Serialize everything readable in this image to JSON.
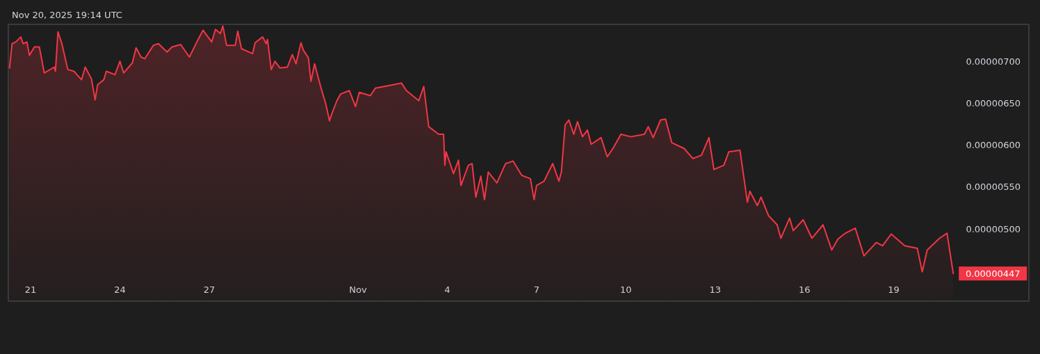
{
  "chart_data": {
    "type": "area",
    "color": "#f23645",
    "annotations": [
      "Nov 20, 2025 19:14 UTC",
      {
        "text": "0.00000447",
        "x": "2025-11-21T00:00",
        "y": 4.47e-06
      }
    ],
    "xlim": [
      "2025-10-20T06:00",
      "2025-11-23T13:00"
    ],
    "xticks": [
      {
        "value": "2025-10-21",
        "label": "21"
      },
      {
        "value": "2025-10-24",
        "label": "24"
      },
      {
        "value": "2025-10-27",
        "label": "27"
      },
      {
        "value": "2025-11-01",
        "label": "Nov"
      },
      {
        "value": "2025-11-04",
        "label": "4"
      },
      {
        "value": "2025-11-07",
        "label": "7"
      },
      {
        "value": "2025-11-10",
        "label": "10"
      },
      {
        "value": "2025-11-13",
        "label": "13"
      },
      {
        "value": "2025-11-16",
        "label": "16"
      },
      {
        "value": "2025-11-19",
        "label": "19"
      }
    ],
    "ylim": [
      4.14e-06,
      7.44e-06
    ],
    "yticks": [
      {
        "value": 5e-06,
        "label": "0.00000500"
      },
      {
        "value": 5.5e-06,
        "label": "0.00000550"
      },
      {
        "value": 6e-06,
        "label": "0.00000600"
      },
      {
        "value": 6.5e-06,
        "label": "0.00000650"
      },
      {
        "value": 7e-06,
        "label": "0.00000700"
      }
    ],
    "grid": false,
    "marker": "none",
    "line_style": "solid",
    "x": [
      "2025-10-20T07:00",
      "2025-10-20T09:00",
      "2025-10-20T12:00",
      "2025-10-20T16:00",
      "2025-10-20T18:00",
      "2025-10-20T21:00",
      "2025-10-20T23:00",
      "2025-10-21T03:00",
      "2025-10-21T07:00",
      "2025-10-21T11:00",
      "2025-10-21T19:00",
      "2025-10-21T20:00",
      "2025-10-21T22:00",
      "2025-10-22T01:00",
      "2025-10-22T06:00",
      "2025-10-22T11:00",
      "2025-10-22T17:00",
      "2025-10-22T20:00",
      "2025-10-23T01:00",
      "2025-10-23T04:00",
      "2025-10-23T06:00",
      "2025-10-23T11:00",
      "2025-10-23T13:00",
      "2025-10-23T20:00",
      "2025-10-24T00:00",
      "2025-10-24T03:00",
      "2025-10-24T10:00",
      "2025-10-24T13:00",
      "2025-10-24T17:00",
      "2025-10-24T20:00",
      "2025-10-25T03:00",
      "2025-10-25T07:00",
      "2025-10-25T14:00",
      "2025-10-25T18:00",
      "2025-10-26T01:00",
      "2025-10-26T08:00",
      "2025-10-26T14:00",
      "2025-10-26T19:00",
      "2025-10-27T02:00",
      "2025-10-27T05:00",
      "2025-10-27T09:00",
      "2025-10-27T11:00",
      "2025-10-27T14:00",
      "2025-10-27T21:00",
      "2025-10-27T23:00",
      "2025-10-28T02:00",
      "2025-10-28T11:00",
      "2025-10-28T13:00",
      "2025-10-28T19:00",
      "2025-10-28T22:00",
      "2025-10-28T23:00",
      "2025-10-29T02:00",
      "2025-10-29T05:00",
      "2025-10-29T09:00",
      "2025-10-29T15:00",
      "2025-10-29T19:00",
      "2025-10-29T22:00",
      "2025-10-30T02:00",
      "2025-10-30T04:00",
      "2025-10-30T08:00",
      "2025-10-30T10:00",
      "2025-10-30T13:00",
      "2025-10-30T18:00",
      "2025-10-30T22:00",
      "2025-10-31T01:00",
      "2025-10-31T03:00",
      "2025-10-31T07:00",
      "2025-10-31T10:00",
      "2025-10-31T17:00",
      "2025-10-31T22:00",
      "2025-11-01T01:00",
      "2025-11-01T10:00",
      "2025-11-01T14:00",
      "2025-11-02T01:00",
      "2025-11-02T11:00",
      "2025-11-02T15:00",
      "2025-11-03T01:00",
      "2025-11-03T05:00",
      "2025-11-03T09:00",
      "2025-11-03T17:00",
      "2025-11-03T21:00",
      "2025-11-03T22:00",
      "2025-11-03T23:00",
      "2025-11-04T05:00",
      "2025-11-04T09:00",
      "2025-11-04T11:00",
      "2025-11-04T17:00",
      "2025-11-04T20:00",
      "2025-11-04T23:00",
      "2025-11-05T03:00",
      "2025-11-05T06:00",
      "2025-11-05T09:00",
      "2025-11-05T16:00",
      "2025-11-05T23:00",
      "2025-11-06T05:00",
      "2025-11-06T12:00",
      "2025-11-06T19:00",
      "2025-11-06T22:00",
      "2025-11-07T00:00",
      "2025-11-07T06:00",
      "2025-11-07T13:00",
      "2025-11-07T18:00",
      "2025-11-07T20:00",
      "2025-11-07T23:00",
      "2025-11-08T02:00",
      "2025-11-08T06:00",
      "2025-11-08T09:00",
      "2025-11-08T13:00",
      "2025-11-08T17:00",
      "2025-11-08T20:00",
      "2025-11-09T04:00",
      "2025-11-09T09:00",
      "2025-11-09T14:00",
      "2025-11-09T20:00",
      "2025-11-10T04:00",
      "2025-11-10T15:00",
      "2025-11-10T18:00",
      "2025-11-10T22:00",
      "2025-11-11T04:00",
      "2025-11-11T08:00",
      "2025-11-11T13:00",
      "2025-11-11T23:00",
      "2025-11-12T06:00",
      "2025-11-12T13:00",
      "2025-11-12T19:00",
      "2025-11-12T23:00",
      "2025-11-13T07:00",
      "2025-11-13T11:00",
      "2025-11-13T20:00",
      "2025-11-14T02:00",
      "2025-11-14T04:00",
      "2025-11-14T10:00",
      "2025-11-14T13:00",
      "2025-11-14T19:00",
      "2025-11-15T02:00",
      "2025-11-15T05:00",
      "2025-11-15T12:00",
      "2025-11-15T15:00",
      "2025-11-15T23:00",
      "2025-11-16T06:00",
      "2025-11-16T15:00",
      "2025-11-16T22:00",
      "2025-11-17T03:00",
      "2025-11-17T09:00",
      "2025-11-17T17:00",
      "2025-11-18T00:00",
      "2025-11-18T10:00",
      "2025-11-18T15:00",
      "2025-11-18T22:00",
      "2025-11-19T09:00",
      "2025-11-19T19:00",
      "2025-11-19T23:00",
      "2025-11-20T03:00",
      "2025-11-20T13:00",
      "2025-11-20T19:00",
      "2025-11-21T00:00"
    ],
    "values": [
      6.92e-06,
      7.21e-06,
      7.23e-06,
      7.29e-06,
      7.21e-06,
      7.23e-06,
      7.07e-06,
      7.17e-06,
      7.17e-06,
      6.86e-06,
      6.93e-06,
      6.88e-06,
      7.35e-06,
      7.22e-06,
      6.9e-06,
      6.88e-06,
      6.78e-06,
      6.93e-06,
      6.79e-06,
      6.54e-06,
      6.72e-06,
      6.78e-06,
      6.88e-06,
      6.84e-06,
      7e-06,
      6.86e-06,
      6.98e-06,
      7.16e-06,
      7.05e-06,
      7.03e-06,
      7.19e-06,
      7.21e-06,
      7.11e-06,
      7.17e-06,
      7.2e-06,
      7.05e-06,
      7.23e-06,
      7.37e-06,
      7.23e-06,
      7.38e-06,
      7.33e-06,
      7.42e-06,
      7.19e-06,
      7.19e-06,
      7.36e-06,
      7.15e-06,
      7.09e-06,
      7.22e-06,
      7.29e-06,
      7.21e-06,
      7.26e-06,
      6.9e-06,
      7e-06,
      6.92e-06,
      6.93e-06,
      7.08e-06,
      6.97e-06,
      7.22e-06,
      7.13e-06,
      7.04e-06,
      6.76e-06,
      6.97e-06,
      6.69e-06,
      6.49e-06,
      6.29e-06,
      6.38e-06,
      6.53e-06,
      6.61e-06,
      6.65e-06,
      6.46e-06,
      6.63e-06,
      6.59e-06,
      6.68e-06,
      6.71e-06,
      6.74e-06,
      6.65e-06,
      6.53e-06,
      6.7e-06,
      6.22e-06,
      6.13e-06,
      6.13e-06,
      5.76e-06,
      5.92e-06,
      5.66e-06,
      5.82e-06,
      5.52e-06,
      5.76e-06,
      5.78e-06,
      5.38e-06,
      5.63e-06,
      5.35e-06,
      5.68e-06,
      5.55e-06,
      5.78e-06,
      5.81e-06,
      5.64e-06,
      5.6e-06,
      5.35e-06,
      5.52e-06,
      5.57e-06,
      5.78e-06,
      5.57e-06,
      5.68e-06,
      6.24e-06,
      6.3e-06,
      6.13e-06,
      6.28e-06,
      6.1e-06,
      6.18e-06,
      6.01e-06,
      6.09e-06,
      5.86e-06,
      5.97e-06,
      6.13e-06,
      6.1e-06,
      6.13e-06,
      6.22e-06,
      6.09e-06,
      6.3e-06,
      6.31e-06,
      6.03e-06,
      5.96e-06,
      5.84e-06,
      5.88e-06,
      6.09e-06,
      5.71e-06,
      5.76e-06,
      5.92e-06,
      5.94e-06,
      5.32e-06,
      5.45e-06,
      5.28e-06,
      5.38e-06,
      5.16e-06,
      5.05e-06,
      4.89e-06,
      5.13e-06,
      4.98e-06,
      5.11e-06,
      4.89e-06,
      5.05e-06,
      4.75e-06,
      4.88e-06,
      4.95e-06,
      5.01e-06,
      4.68e-06,
      4.84e-06,
      4.8e-06,
      4.94e-06,
      4.8e-06,
      4.77e-06,
      4.49e-06,
      4.75e-06,
      4.89e-06,
      4.95e-06,
      4.47e-06
    ]
  }
}
